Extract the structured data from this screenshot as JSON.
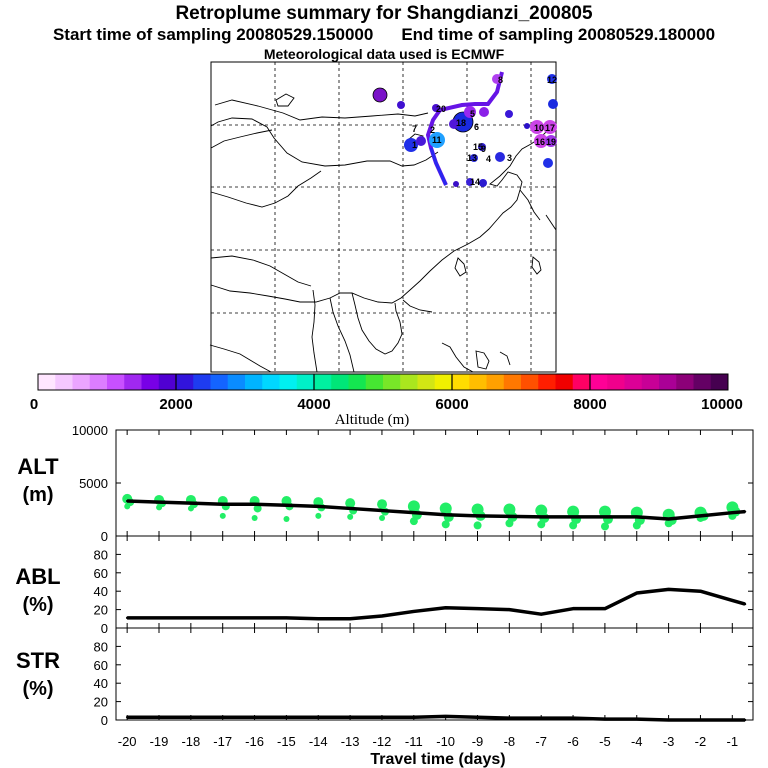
{
  "header": {
    "title": "Retroplume summary for Shangdianzi_200805",
    "start_label": "Start time of sampling 20080529.150000",
    "end_label": "End time of sampling 20080529.180000",
    "met_label": "Meteorological data used is ECMWF"
  },
  "map": {
    "plume_labels": [
      "1",
      "2",
      "3",
      "4",
      "5",
      "6",
      "7",
      "8",
      "9",
      "10",
      "11",
      "12",
      "13",
      "14",
      "15",
      "16",
      "17",
      "18",
      "19",
      "20"
    ]
  },
  "colorbar": {
    "ticks": [
      "0",
      "2000",
      "4000",
      "6000",
      "8000",
      "10000"
    ],
    "label": "Altitude (m)",
    "colors": [
      "#ffe6ff",
      "#f5c8ff",
      "#eba5ff",
      "#dc7dff",
      "#c850ff",
      "#a028f0",
      "#7800e6",
      "#5000d2",
      "#3214dc",
      "#1e3cf0",
      "#1464ff",
      "#0a8cff",
      "#00b4ff",
      "#00d7ff",
      "#00f0f0",
      "#00f0c8",
      "#00f0a0",
      "#00e678",
      "#14e650",
      "#46e632",
      "#78e628",
      "#aae61e",
      "#d2e614",
      "#f0f000",
      "#ffdc00",
      "#ffbe00",
      "#ffa000",
      "#ff7800",
      "#ff5000",
      "#ff1e00",
      "#f00000",
      "#ff0064",
      "#ff0096",
      "#f0008c",
      "#dc0096",
      "#c80096",
      "#aa0096",
      "#8c0078",
      "#640064",
      "#460050"
    ]
  },
  "panels": {
    "alt": {
      "label1": "ALT",
      "label2": "(m)"
    },
    "abl": {
      "label1": "ABL",
      "label2": "(%)"
    },
    "str": {
      "label1": "STR",
      "label2": "(%)"
    }
  },
  "chart_data": [
    {
      "type": "line",
      "id": "altitude",
      "ylabel": "ALT (m)",
      "xlabel": "Travel time (days)",
      "ylim": [
        0,
        10000
      ],
      "yticks": [
        "10000",
        "5000",
        "0"
      ],
      "x": [
        -20,
        -19,
        -18,
        -17,
        -16,
        -15,
        -14,
        -13,
        -12,
        -11,
        -10,
        -9,
        -8,
        -7,
        -6,
        -5,
        -4,
        -3,
        -2,
        -1,
        -0.6
      ],
      "values": [
        3300,
        3200,
        3100,
        3000,
        3000,
        2900,
        2800,
        2600,
        2400,
        2200,
        2000,
        1900,
        1850,
        1800,
        1800,
        1800,
        1800,
        1600,
        1900,
        2200,
        2300
      ],
      "cluster_altitudes": [
        [
          3500,
          3200,
          2800
        ],
        [
          3400,
          3100,
          2700
        ],
        [
          3400,
          3000,
          2600
        ],
        [
          3300,
          2800,
          1900
        ],
        [
          3300,
          2600,
          1700
        ],
        [
          3300,
          2800,
          1600
        ],
        [
          3200,
          2700,
          1900
        ],
        [
          3100,
          2400,
          1800
        ],
        [
          3000,
          2300,
          1700
        ],
        [
          2800,
          2000,
          1400
        ],
        [
          2600,
          1800,
          1100
        ],
        [
          2500,
          1900,
          1000
        ],
        [
          2500,
          1800,
          1200
        ],
        [
          2400,
          1700,
          1100
        ],
        [
          2300,
          1600,
          1000
        ],
        [
          2300,
          1600,
          900
        ],
        [
          2200,
          1500,
          1000
        ],
        [
          2000,
          1500,
          1200
        ],
        [
          2200,
          1900,
          1700
        ],
        [
          2700,
          2300,
          1900
        ]
      ],
      "series_color": "#22ee66"
    },
    {
      "type": "line",
      "id": "abl",
      "ylabel": "ABL (%)",
      "xlabel": "Travel time (days)",
      "ylim": [
        0,
        100
      ],
      "yticks": [
        "80",
        "60",
        "40",
        "20",
        "0"
      ],
      "x": [
        -20,
        -19,
        -18,
        -17,
        -16,
        -15,
        -14,
        -13,
        -12,
        -11,
        -10,
        -9,
        -8,
        -7,
        -6,
        -5,
        -4,
        -3,
        -2,
        -1,
        -0.6
      ],
      "values": [
        11,
        11,
        11,
        11,
        11,
        11,
        10,
        10,
        13,
        18,
        22,
        21,
        20,
        15,
        21,
        21,
        38,
        42,
        40,
        30,
        26
      ]
    },
    {
      "type": "line",
      "id": "stratosphere",
      "ylabel": "STR (%)",
      "xlabel": "Travel time (days)",
      "ylim": [
        0,
        100
      ],
      "yticks": [
        "80",
        "60",
        "40",
        "20",
        "0"
      ],
      "x": [
        -20,
        -19,
        -18,
        -17,
        -16,
        -15,
        -14,
        -13,
        -12,
        -11,
        -10,
        -9,
        -8,
        -7,
        -6,
        -5,
        -4,
        -3,
        -2,
        -1,
        -0.6
      ],
      "values": [
        3,
        3,
        3,
        3,
        3,
        3,
        3,
        3,
        3,
        3,
        4,
        3,
        2,
        2,
        2,
        1,
        1,
        0,
        0,
        0,
        0
      ]
    }
  ],
  "xaxis": {
    "tick_labels": [
      "-20",
      "-19",
      "-18",
      "-17",
      "-16",
      "-15",
      "-14",
      "-13",
      "-12",
      "-11",
      "-10",
      "-9",
      "-8",
      "-7",
      "-6",
      "-5",
      "-4",
      "-3",
      "-2",
      "-1"
    ],
    "title": "Travel time (days)"
  }
}
